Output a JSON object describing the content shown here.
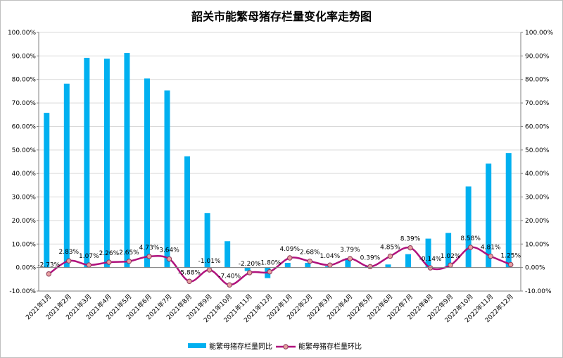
{
  "chart_data": {
    "type": "bar",
    "title": "韶关市能繁母猪存栏量变化率走势图",
    "categories": [
      "2021年1月",
      "2021年2月",
      "2021年3月",
      "2021年4月",
      "2021年5月",
      "2021年6月",
      "2021年7月",
      "2021年8月",
      "2021年9月",
      "2021年10月",
      "2021年11月",
      "2021年12月",
      "2022年1月",
      "2022年2月",
      "2022年3月",
      "2022年4月",
      "2022年5月",
      "2022年6月",
      "2022年7月",
      "2022年8月",
      "2022年9月",
      "2022年10月",
      "2022年11月",
      "2022年12月"
    ],
    "series": [
      {
        "name": "能繁母猪存栏量同比",
        "type": "bar",
        "color": "#00b0f0",
        "values": [
          65.8,
          78.2,
          89.2,
          88.8,
          91.3,
          80.4,
          75.3,
          47.3,
          23.2,
          11.2,
          -1.5,
          -4.5,
          2.0,
          2.0,
          0.5,
          4.0,
          0.5,
          1.3,
          5.7,
          12.3,
          14.7,
          34.5,
          44.2,
          48.7
        ]
      },
      {
        "name": "能繁母猪存栏量环比",
        "type": "line",
        "color": "#b0127d",
        "values": [
          -2.73,
          2.83,
          1.07,
          2.26,
          2.65,
          4.73,
          3.64,
          -5.88,
          -1.01,
          -7.4,
          -2.2,
          -1.8,
          4.09,
          2.68,
          1.04,
          3.79,
          0.39,
          4.85,
          8.39,
          -0.14,
          1.02,
          8.58,
          4.81,
          1.25
        ],
        "labels": [
          "-2.73%",
          "2.83%",
          "1.07%",
          "2.26%",
          "2.65%",
          "4.73%",
          "3.64%",
          "-5.88%",
          "-1.01%",
          "-7.40%",
          "-2.20%",
          "-1.80%",
          "4.09%",
          "2.68%",
          "1.04%",
          "3.79%",
          "0.39%",
          "4.85%",
          "8.39%",
          "-0.14%",
          "1.02%",
          "8.58%",
          "4.81%",
          "1.25%"
        ]
      }
    ],
    "y_ticks": [
      "-10.00%",
      "0.00%",
      "10.00%",
      "20.00%",
      "30.00%",
      "40.00%",
      "50.00%",
      "60.00%",
      "70.00%",
      "80.00%",
      "90.00%",
      "100.00%"
    ],
    "ylim": [
      -10,
      100
    ],
    "legend": "bottom"
  }
}
